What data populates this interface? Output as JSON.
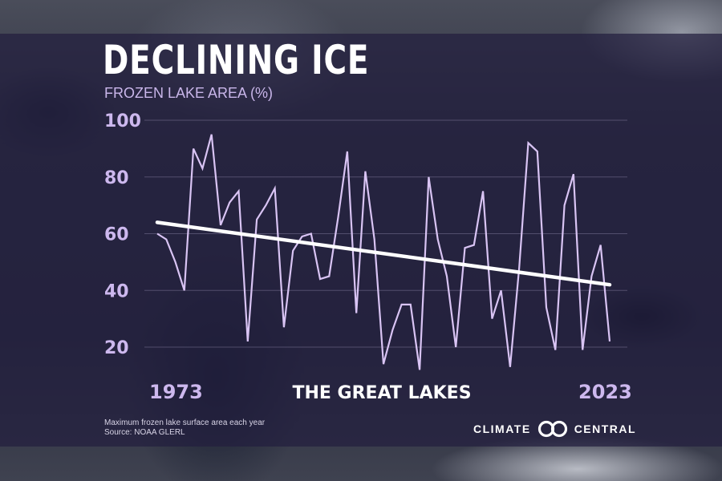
{
  "chart_data": {
    "type": "line",
    "title": "DECLINING ICE",
    "subtitle": "FROZEN LAKE AREA (%)",
    "xlabel": "",
    "ylabel": "",
    "region_label": "THE GREAT LAKES",
    "x_start_label": "1973",
    "x_end_label": "2023",
    "xlim": [
      1973,
      2023
    ],
    "ylim": [
      20,
      100
    ],
    "yticks": [
      "100",
      "80",
      "60",
      "40",
      "20"
    ],
    "grid": true,
    "series": [
      {
        "values": [
          60,
          58,
          50,
          40,
          90,
          83,
          95,
          63,
          71,
          75,
          22,
          65,
          70,
          76,
          27,
          54,
          59,
          60,
          44,
          45,
          66,
          89,
          32,
          82,
          58,
          14,
          26,
          35,
          35,
          12,
          80,
          58,
          45,
          20,
          55,
          56,
          75,
          30,
          40,
          13,
          48,
          92,
          89,
          34,
          19,
          70,
          81,
          19,
          45,
          56,
          22
        ]
      }
    ],
    "trend": {
      "start": 64,
      "end": 42
    },
    "line_color": "#d9c4f4",
    "trend_color": "#ffffff"
  },
  "footnote": {
    "line1": "Maximum frozen lake surface area each year",
    "line2": "Source: NOAA GLERL"
  },
  "brand": {
    "left": "CLIMATE",
    "right": "CENTRAL",
    "logo_icon": "linked-rings-icon"
  }
}
